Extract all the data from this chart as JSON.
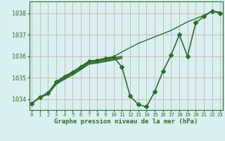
{
  "background_color": "#d8f0f0",
  "grid_color": "#c8dede",
  "line_color": "#2d6e2d",
  "xlim": [
    -0.3,
    23.3
  ],
  "ylim": [
    1033.5,
    1038.55
  ],
  "yticks": [
    1034,
    1035,
    1036,
    1037,
    1038
  ],
  "xticks": [
    0,
    1,
    2,
    3,
    4,
    5,
    6,
    7,
    8,
    9,
    10,
    11,
    12,
    13,
    14,
    15,
    16,
    17,
    18,
    19,
    20,
    21,
    22,
    23
  ],
  "xlabel": "Graphe pression niveau de la mer (hPa)",
  "series": [
    {
      "x": [
        0,
        1,
        2,
        3,
        4,
        5,
        6,
        7,
        8,
        9,
        10,
        11,
        12,
        13,
        14,
        15,
        16,
        17,
        18,
        19,
        20,
        21,
        22,
        23
      ],
      "y": [
        1033.8,
        1034.1,
        1034.3,
        1034.8,
        1035.05,
        1035.25,
        1035.5,
        1035.75,
        1035.8,
        1035.88,
        1035.95,
        1035.5,
        1034.15,
        1033.75,
        1033.65,
        1034.35,
        1035.3,
        1036.05,
        1037.0,
        1036.0,
        1037.55,
        1037.85,
        1038.1,
        1038.0
      ],
      "has_markers": true,
      "linewidth": 1.2,
      "marker": "D",
      "markersize": 3.0
    },
    {
      "x": [
        0,
        1,
        2,
        3,
        4,
        5,
        6,
        7,
        8,
        9,
        10,
        11,
        12,
        13,
        14,
        15,
        16,
        17,
        18,
        19,
        20,
        21,
        22,
        23
      ],
      "y": [
        1033.8,
        1034.1,
        1034.3,
        1034.82,
        1035.08,
        1035.28,
        1035.53,
        1035.78,
        1035.83,
        1035.91,
        1035.98,
        1036.2,
        1036.4,
        1036.6,
        1036.75,
        1036.9,
        1037.05,
        1037.2,
        1037.4,
        1037.6,
        1037.75,
        1037.9,
        1038.1,
        1038.05
      ],
      "has_markers": false,
      "linewidth": 1.0
    },
    {
      "x": [
        0,
        1,
        2,
        3,
        4,
        5,
        6,
        7,
        8,
        9,
        10,
        11
      ],
      "y": [
        1033.8,
        1034.1,
        1034.28,
        1034.78,
        1035.03,
        1035.23,
        1035.48,
        1035.73,
        1035.78,
        1035.85,
        1035.92,
        1036.0
      ],
      "has_markers": false,
      "linewidth": 1.0
    },
    {
      "x": [
        0,
        1,
        2,
        3,
        4,
        5,
        6,
        7,
        8,
        9,
        10,
        11
      ],
      "y": [
        1033.8,
        1034.09,
        1034.26,
        1034.74,
        1034.98,
        1035.18,
        1035.43,
        1035.68,
        1035.73,
        1035.8,
        1035.87,
        1035.95
      ],
      "has_markers": false,
      "linewidth": 1.0
    },
    {
      "x": [
        0,
        1,
        2,
        3,
        4,
        5,
        6,
        7,
        8,
        9,
        10,
        11
      ],
      "y": [
        1033.8,
        1034.08,
        1034.23,
        1034.7,
        1034.93,
        1035.13,
        1035.38,
        1035.63,
        1035.68,
        1035.75,
        1035.82,
        1035.9
      ],
      "has_markers": false,
      "linewidth": 1.0
    }
  ]
}
